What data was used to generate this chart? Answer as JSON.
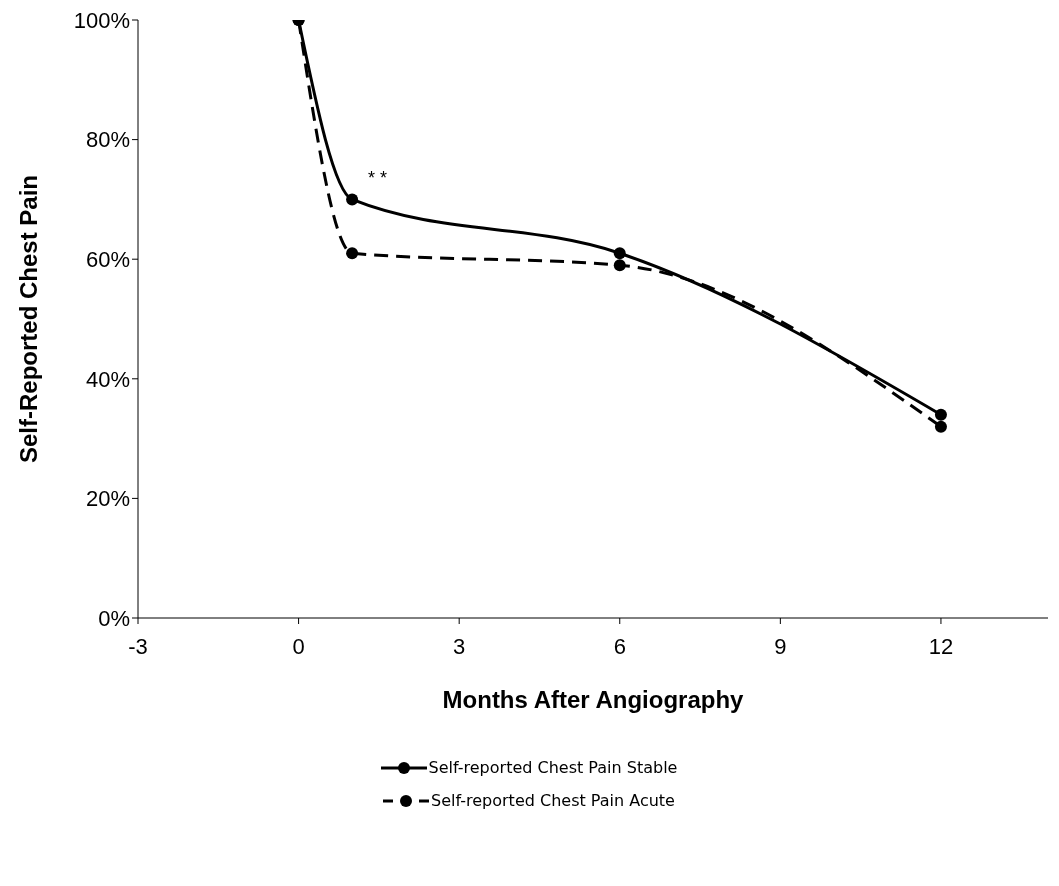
{
  "chart_data": {
    "type": "line",
    "xlabel": "Months After Angiography",
    "ylabel": "Self-Reported Chest Pain",
    "x": [
      0,
      1,
      6,
      12
    ],
    "series": [
      {
        "name": "Self-reported Chest Pain Stable",
        "color": "#000000",
        "values": [
          100,
          70,
          61,
          34
        ],
        "line_style": "solid"
      },
      {
        "name": "Self-reported Chest Pain Acute",
        "color": "#000000",
        "values": [
          100,
          61,
          59,
          32
        ],
        "line_style": "dashed"
      }
    ],
    "xlim": [
      -3,
      14
    ],
    "xticks": [
      -3,
      0,
      3,
      6,
      9,
      12
    ],
    "ylim": [
      0,
      100
    ],
    "yticks": [
      {
        "value": 0,
        "label": "0%"
      },
      {
        "value": 20,
        "label": "20%"
      },
      {
        "value": 40,
        "label": "40%"
      },
      {
        "value": 60,
        "label": "60%"
      },
      {
        "value": 80,
        "label": "80%"
      },
      {
        "value": 100,
        "label": "100%"
      }
    ],
    "annotations": [
      "* *"
    ],
    "grid": false,
    "legend": "bottom",
    "marker": "circle"
  }
}
